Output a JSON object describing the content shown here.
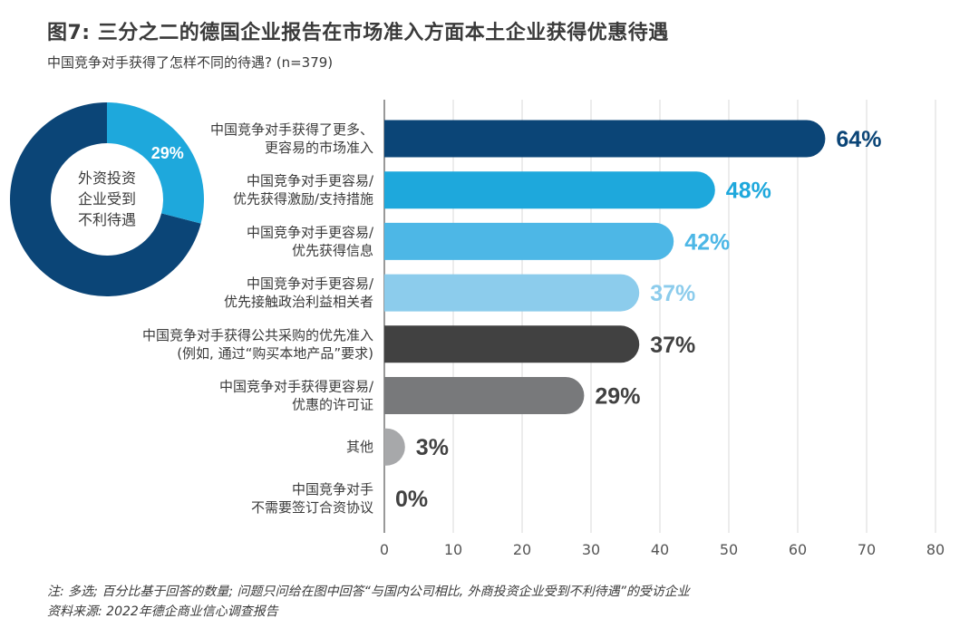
{
  "header": {
    "title": "图7: 三分之二的德国企业报告在市场准入方面本土企业获得优惠待遇",
    "subtitle": "中国竞争对手获得了怎样不同的待遇? (n=379)"
  },
  "donut": {
    "center_label_lines": [
      "外资投资",
      "企业受到",
      "不利待遇"
    ],
    "slice_label": "29%",
    "value": 29,
    "colors": {
      "slice": "#1ea8dc",
      "rest": "#0b4577"
    }
  },
  "chart_data": {
    "type": "bar",
    "orientation": "horizontal",
    "categories": [
      [
        "中国竞争对手获得了更多、",
        "更容易的市场准入"
      ],
      [
        "中国竞争对手更容易/",
        "优先获得激励/支持措施"
      ],
      [
        "中国竞争对手更容易/",
        "优先获得信息"
      ],
      [
        "中国竞争对手更容易/",
        "优先接触政治利益相关者"
      ],
      [
        "中国竞争对手获得公共采购的优先准入",
        "(例如, 通过“购买本地产品”要求)"
      ],
      [
        "中国竞争对手获得更容易/",
        "优惠的许可证"
      ],
      [
        "其他"
      ],
      [
        "中国竞争对手",
        "不需要签订合资协议"
      ]
    ],
    "values": [
      64,
      48,
      42,
      37,
      37,
      29,
      3,
      0
    ],
    "value_labels": [
      "64%",
      "48%",
      "42%",
      "37%",
      "37%",
      "29%",
      "3%",
      "0%"
    ],
    "bar_colors": [
      "#0b4577",
      "#1ea8dc",
      "#4db7e6",
      "#8cccec",
      "#414141",
      "#78797b",
      "#a7a8aa",
      "#c8c8c8"
    ],
    "label_colors": [
      "#0b4577",
      "#1ea8dc",
      "#4db7e6",
      "#8cccec",
      "#414141",
      "#414141",
      "#414141",
      "#414141"
    ],
    "xlim": [
      0,
      80
    ],
    "xticks": [
      0,
      10,
      20,
      30,
      40,
      50,
      60,
      70,
      80
    ],
    "xlabel": "",
    "ylabel": "",
    "grid": true
  },
  "footer": {
    "note": "注: 多选; 百分比基于回答的数量; 问题只问给在图中回答“与国内公司相比, 外商投资企业受到不利待遇”的受访企业",
    "source": "资料来源: 2022年德企商业信心调查报告"
  }
}
